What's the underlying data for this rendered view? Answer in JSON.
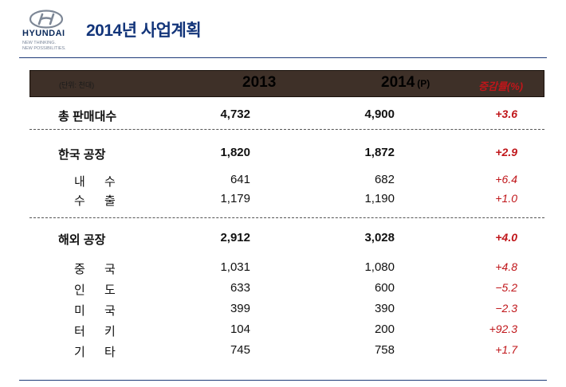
{
  "brand": {
    "name": "HYUNDAI",
    "tagline_1": "NEW THINKING.",
    "tagline_2": "NEW POSSIBILITIES."
  },
  "title": "2014년 사업계획",
  "header": {
    "unit": "(단위: 천대)",
    "col_2013": "2013",
    "col_2014": "2014",
    "col_2014_suffix": "(P)",
    "col_change": "증감률(%)"
  },
  "rows": [
    {
      "label": "총 판매대수",
      "v2013": "4,732",
      "v2014": "4,900",
      "change": "+3.6"
    },
    {
      "label": "한국 공장",
      "v2013": "1,820",
      "v2014": "1,872",
      "change": "+2.9"
    },
    {
      "label": "내 수",
      "v2013": "641",
      "v2014": "682",
      "change": "+6.4"
    },
    {
      "label": "수 출",
      "v2013": "1,179",
      "v2014": "1,190",
      "change": "+1.0"
    },
    {
      "label": "해외 공장",
      "v2013": "2,912",
      "v2014": "3,028",
      "change": "+4.0"
    },
    {
      "label": "중 국",
      "v2013": "1,031",
      "v2014": "1,080",
      "change": "+4.8"
    },
    {
      "label": "인 도",
      "v2013": "633",
      "v2014": "600",
      "change": "−5.2"
    },
    {
      "label": "미 국",
      "v2013": "399",
      "v2014": "390",
      "change": "−2.3"
    },
    {
      "label": "터 키",
      "v2013": "104",
      "v2014": "200",
      "change": "+92.3"
    },
    {
      "label": "기 타",
      "v2013": "745",
      "v2014": "758",
      "change": "+1.7"
    }
  ],
  "colors": {
    "brand_navy": "#13357a",
    "header_bg": "#3e3028",
    "change_red": "#c0161a"
  },
  "icons": {
    "logo": "hyundai-logo-icon"
  }
}
